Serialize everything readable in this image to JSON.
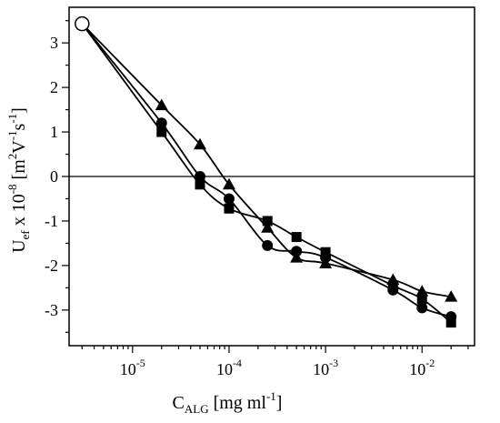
{
  "chart_data": {
    "type": "scatter",
    "x_scale": "log",
    "xlim": [
      2.2e-06,
      0.035
    ],
    "ylim": [
      -3.8,
      3.8
    ],
    "grid": false,
    "reference_line_y": 0,
    "xlabel": {
      "main": "C",
      "sub": "ALG",
      "rest": " [mg ml",
      "sup": "-1",
      "end": "]"
    },
    "ylabel": {
      "main": "U",
      "sub": "ef",
      "mid": " x 10",
      "sup1": "-8",
      "mid2": " [m",
      "sup2": "2",
      "v": "V",
      "sup3": "-1",
      "s": "s",
      "sup4": "-1",
      "end": "]"
    },
    "x_ticks": [
      {
        "base": "10",
        "exp": "-5",
        "value": 1e-05
      },
      {
        "base": "10",
        "exp": "-4",
        "value": 0.0001
      },
      {
        "base": "10",
        "exp": "-3",
        "value": 0.001
      },
      {
        "base": "10",
        "exp": "-2",
        "value": 0.01
      }
    ],
    "y_ticks": [
      {
        "label": "3",
        "value": 3
      },
      {
        "label": "2",
        "value": 2
      },
      {
        "label": "1",
        "value": 1
      },
      {
        "label": "0",
        "value": 0
      },
      {
        "label": "-1",
        "value": -1
      },
      {
        "label": "-2",
        "value": -2
      },
      {
        "label": "-3",
        "value": -3
      }
    ],
    "start_point": {
      "marker": "open-circle",
      "x": 3e-06,
      "y": 3.43
    },
    "series": [
      {
        "marker": "square",
        "x": [
          3e-06,
          2e-05,
          5e-05,
          0.0001,
          0.00025,
          0.0005,
          0.001,
          0.005,
          0.01,
          0.02
        ],
        "y": [
          3.43,
          1.0,
          -0.18,
          -0.72,
          -1.0,
          -1.36,
          -1.7,
          -2.45,
          -2.75,
          -3.28
        ]
      },
      {
        "marker": "circle",
        "x": [
          3e-06,
          2e-05,
          5e-05,
          0.0001,
          0.00025,
          0.0005,
          0.001,
          0.005,
          0.01,
          0.02
        ],
        "y": [
          3.43,
          1.2,
          0.0,
          -0.5,
          -1.55,
          -1.68,
          -1.82,
          -2.55,
          -2.95,
          -3.15
        ]
      },
      {
        "marker": "triangle",
        "x": [
          3e-06,
          2e-05,
          5e-05,
          0.0001,
          0.00025,
          0.0005,
          0.001,
          0.005,
          0.01,
          0.02
        ],
        "y": [
          3.43,
          1.6,
          0.72,
          -0.18,
          -1.15,
          -1.82,
          -1.95,
          -2.32,
          -2.58,
          -2.7
        ]
      }
    ]
  }
}
